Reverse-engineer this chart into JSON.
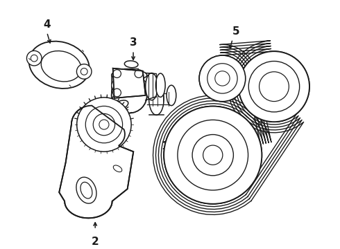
{
  "background_color": "#ffffff",
  "line_color": "#1a1a1a",
  "line_width": 1.1,
  "fig_width": 4.9,
  "fig_height": 3.6,
  "dpi": 100,
  "label_fontsize": 11,
  "label_fontweight": "bold",
  "label_family": "DejaVu Sans"
}
